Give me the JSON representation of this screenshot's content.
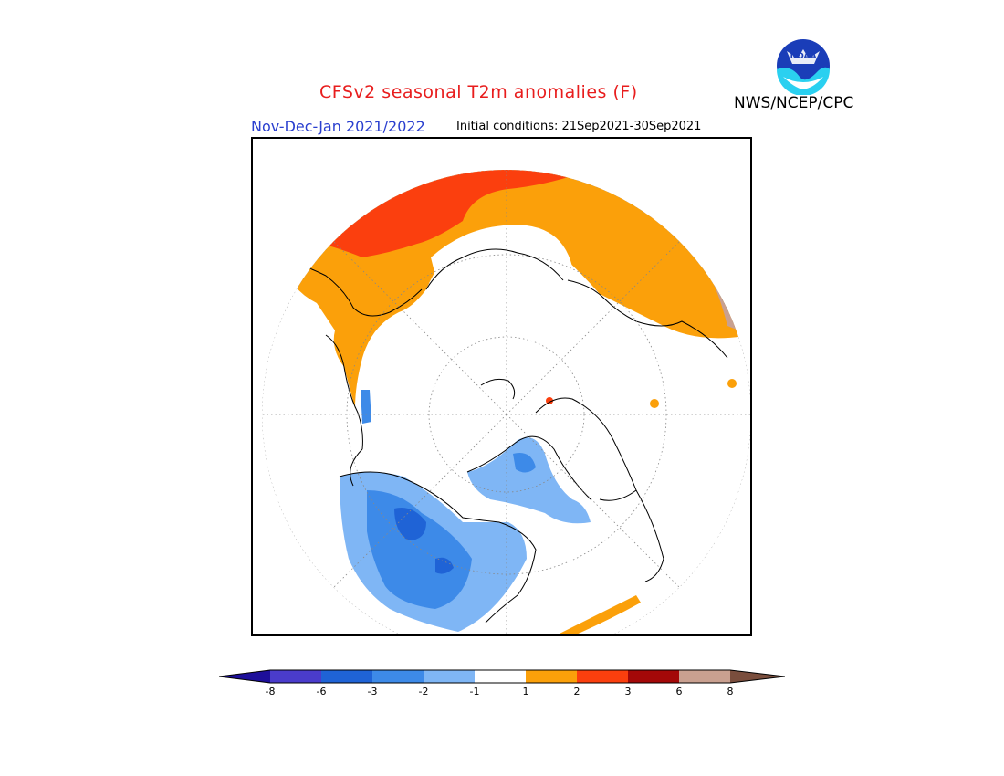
{
  "header": {
    "title": "CFSv2 seasonal T2m anomalies (F)",
    "season": "Nov-Dec-Jan 2021/2022",
    "initial_conditions": "Initial conditions: 21Sep2021-30Sep2021",
    "organization": "NWS/NCEP/CPC",
    "logo_text": "NOAA"
  },
  "map": {
    "projection": "north polar stereographic",
    "variable": "2m temperature anomaly",
    "units": "F"
  },
  "legend": {
    "labels": [
      "-8",
      "-6",
      "-3",
      "-2",
      "-1",
      "1",
      "2",
      "3",
      "6",
      "8"
    ],
    "colors": [
      "#1d0f9a",
      "#4a3ccb",
      "#1f63d6",
      "#3d8ae8",
      "#7fb6f5",
      "#ffffff",
      "#fba00a",
      "#fb3f0e",
      "#a30808",
      "#c9a090",
      "#7a4e3d"
    ]
  }
}
